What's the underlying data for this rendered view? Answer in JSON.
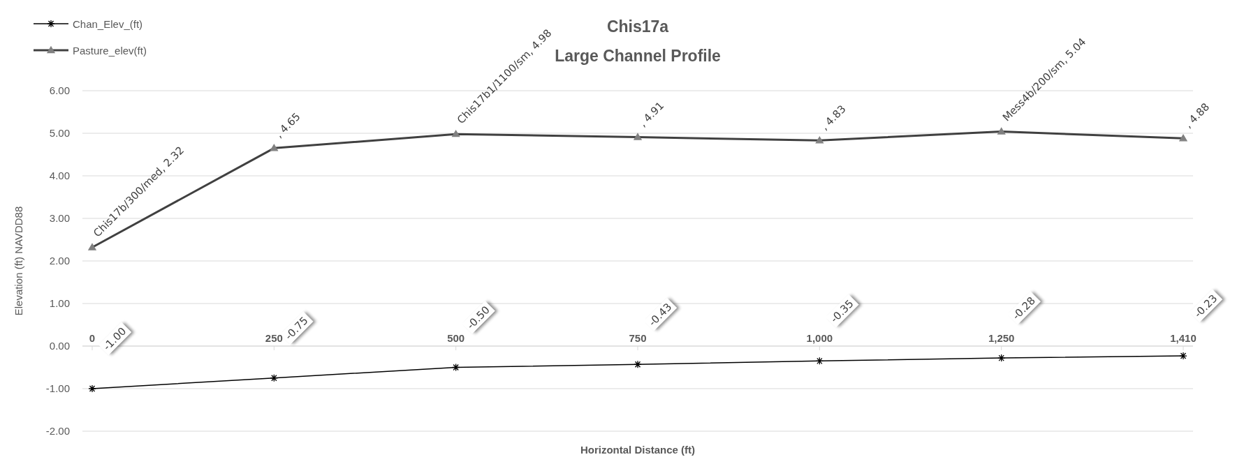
{
  "chart_data": {
    "type": "line",
    "title": "Chis17a",
    "subtitle": "Large Channel Profile",
    "xlabel": "Horizontal Distance (ft)",
    "ylabel": "Elevation (ft) NAVDD88",
    "categories": [
      "0",
      "250",
      "500",
      "750",
      "1,000",
      "1,250",
      "1,410"
    ],
    "series": [
      {
        "name": "Chan_Elev_(ft)",
        "color": "#000000",
        "marker": "cross",
        "values": [
          -1.0,
          -0.75,
          -0.5,
          -0.43,
          -0.35,
          -0.28,
          -0.23
        ],
        "value_labels": [
          "-1.00",
          "-0.75",
          "-0.50",
          "-0.43",
          "-0.35",
          "-0.28",
          "-0.23"
        ]
      },
      {
        "name": "Pasture_elev(ft)",
        "color": "#404040",
        "marker": "triangle",
        "values": [
          2.32,
          4.65,
          4.98,
          4.91,
          4.83,
          5.04,
          4.88
        ],
        "value_labels": [
          "Chis17b/300/med, 2.32",
          ", 4.65",
          "Chis17b1/1100/sm, 4.98",
          ", 4.91",
          ", 4.83",
          "Mess4b/200/sm, 5.04",
          ", 4.88"
        ]
      }
    ],
    "ylim": [
      -2,
      6
    ],
    "yticks": [
      {
        "value": -2,
        "label": "-2.00"
      },
      {
        "value": -1,
        "label": "-1.00"
      },
      {
        "value": 0,
        "label": "0.00"
      },
      {
        "value": 1,
        "label": "1.00"
      },
      {
        "value": 2,
        "label": "2.00"
      },
      {
        "value": 3,
        "label": "3.00"
      },
      {
        "value": 4,
        "label": "4.00"
      },
      {
        "value": 5,
        "label": "5.00"
      },
      {
        "value": 6,
        "label": "6.00"
      }
    ],
    "grid": "y",
    "legend": "top left",
    "line_style": "solid"
  }
}
